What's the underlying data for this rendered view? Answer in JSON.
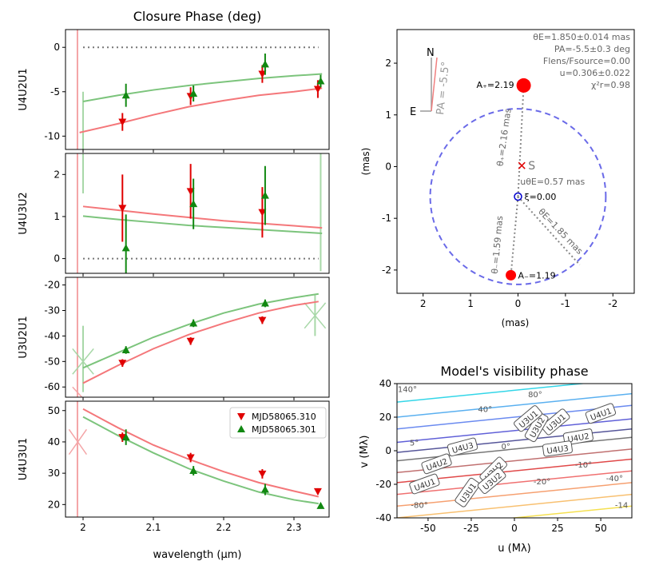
{
  "figure": {
    "left_title": "Closure Phase (deg)",
    "xlabel": "wavelength (μm)",
    "map_xlabel": "(mas)",
    "map_ylabel": "(mas)",
    "vis_title": "Model's visibility phase",
    "vis_xlabel": "u (Mλ)",
    "vis_ylabel": "v (Mλ)"
  },
  "legend": [
    {
      "label": "MJD58065.310",
      "color": "#e41a1c",
      "marker": "down-triangle"
    },
    {
      "label": "MJD58065.301",
      "color": "#1a8a1a",
      "marker": "up-triangle"
    }
  ],
  "colors": {
    "red_model": "#f4777a",
    "green_model": "#7cc47c",
    "red_data": "#e00000",
    "green_data": "#118811",
    "ring": "#6a6ae8"
  },
  "chart_data": [
    {
      "type": "scatter",
      "panel": "U4U2U1",
      "ylabel": "U4U2U1",
      "xlim": [
        1.975,
        2.35
      ],
      "ylim": [
        -11.5,
        2
      ],
      "xticks": [
        2.0,
        2.1,
        2.2,
        2.3
      ],
      "yticks": [
        0,
        -5,
        -10
      ],
      "zero_line": true,
      "series": [
        {
          "name": "MJD58065.310",
          "x": [
            2.056,
            2.153,
            2.255,
            2.334
          ],
          "y": [
            -8.4,
            -5.5,
            -3.0,
            -4.7
          ],
          "err": [
            1.0,
            1.0,
            1.0,
            1.0
          ]
        },
        {
          "name": "MJD58065.301",
          "x": [
            2.061,
            2.157,
            2.259,
            2.338
          ],
          "y": [
            -5.4,
            -5.2,
            -1.9,
            -3.8
          ],
          "err": [
            1.3,
            0.9,
            1.2,
            0.7
          ]
        }
      ],
      "models": [
        {
          "x": [
            1.995,
            2.05,
            2.1,
            2.15,
            2.2,
            2.25,
            2.3,
            2.34
          ],
          "y": [
            -9.6,
            -8.6,
            -7.6,
            -6.7,
            -6.0,
            -5.4,
            -5.0,
            -4.6
          ]
        },
        {
          "x": [
            2.0,
            2.05,
            2.1,
            2.15,
            2.2,
            2.25,
            2.3,
            2.34
          ],
          "y": [
            -6.1,
            -5.4,
            -4.8,
            -4.3,
            -3.9,
            -3.5,
            -3.2,
            -3.0
          ]
        }
      ]
    },
    {
      "type": "scatter",
      "panel": "U4U3U2",
      "ylabel": "U4U3U2",
      "xlim": [
        1.975,
        2.35
      ],
      "ylim": [
        -0.35,
        2.5
      ],
      "xticks": [
        2.0,
        2.1,
        2.2,
        2.3
      ],
      "yticks": [
        0,
        1,
        2
      ],
      "zero_line": true,
      "series": [
        {
          "name": "MJD58065.310",
          "x": [
            2.056,
            2.153,
            2.255
          ],
          "y": [
            1.2,
            1.6,
            1.1
          ],
          "err": [
            0.8,
            0.65,
            0.6
          ]
        },
        {
          "name": "MJD58065.301",
          "x": [
            2.061,
            2.157,
            2.259
          ],
          "y": [
            0.25,
            1.3,
            1.5
          ],
          "err": [
            0.8,
            0.6,
            0.7
          ]
        }
      ],
      "models": [
        {
          "x": [
            2.0,
            2.05,
            2.1,
            2.15,
            2.2,
            2.25,
            2.3,
            2.34
          ],
          "y": [
            1.24,
            1.15,
            1.06,
            0.98,
            0.9,
            0.84,
            0.78,
            0.73
          ]
        },
        {
          "x": [
            2.0,
            2.05,
            2.1,
            2.15,
            2.2,
            2.25,
            2.3,
            2.34
          ],
          "y": [
            1.01,
            0.93,
            0.86,
            0.79,
            0.74,
            0.69,
            0.64,
            0.6
          ]
        }
      ]
    },
    {
      "type": "scatter",
      "panel": "U3U2U1",
      "ylabel": "U3U2U1",
      "xlim": [
        1.975,
        2.35
      ],
      "ylim": [
        -64,
        -17
      ],
      "xticks": [
        2.0,
        2.1,
        2.2,
        2.3
      ],
      "yticks": [
        -20,
        -30,
        -40,
        -50,
        -60
      ],
      "zero_line": false,
      "series": [
        {
          "name": "MJD58065.310",
          "x": [
            2.056,
            2.153,
            2.255
          ],
          "y": [
            -50.6,
            -42.0,
            -33.8
          ],
          "err": [
            1.5,
            1.5,
            1.5
          ]
        },
        {
          "name": "MJD58065.301",
          "x": [
            2.061,
            2.157,
            2.259
          ],
          "y": [
            -45.5,
            -35.0,
            -27.2
          ],
          "err": [
            1.5,
            1.5,
            1.5
          ]
        }
      ],
      "models": [
        {
          "x": [
            2.0,
            2.05,
            2.1,
            2.15,
            2.2,
            2.25,
            2.3,
            2.335
          ],
          "y": [
            -58.5,
            -51.5,
            -45.0,
            -39.5,
            -35.0,
            -31.0,
            -28.0,
            -26.5
          ]
        },
        {
          "x": [
            2.0,
            2.05,
            2.1,
            2.15,
            2.2,
            2.25,
            2.3,
            2.335
          ],
          "y": [
            -52.5,
            -46.5,
            -40.5,
            -35.5,
            -31.0,
            -27.5,
            -25.0,
            -23.5
          ]
        }
      ]
    },
    {
      "type": "scatter",
      "panel": "U4U3U1",
      "ylabel": "U4U3U1",
      "xlim": [
        1.975,
        2.35
      ],
      "ylim": [
        16,
        53
      ],
      "xticks": [
        2.0,
        2.1,
        2.2,
        2.3
      ],
      "yticks": [
        20,
        30,
        40,
        50
      ],
      "zero_line": false,
      "series": [
        {
          "name": "MJD58065.310",
          "x": [
            2.056,
            2.153,
            2.255,
            2.334
          ],
          "y": [
            41.5,
            35.0,
            29.8,
            24.2
          ],
          "err": [
            1.5,
            1.5,
            1.5,
            1.0
          ]
        },
        {
          "name": "MJD58065.301",
          "x": [
            2.061,
            2.157,
            2.259,
            2.338
          ],
          "y": [
            41.5,
            30.8,
            24.8,
            19.6
          ],
          "err": [
            2.5,
            1.5,
            1.8,
            0.8
          ]
        }
      ],
      "models": [
        {
          "x": [
            2.0,
            2.05,
            2.1,
            2.15,
            2.2,
            2.25,
            2.3,
            2.335
          ],
          "y": [
            50.5,
            44.5,
            39.0,
            34.5,
            30.5,
            27.0,
            24.3,
            22.5
          ]
        },
        {
          "x": [
            2.0,
            2.05,
            2.1,
            2.15,
            2.2,
            2.25,
            2.3,
            2.335
          ],
          "y": [
            48.0,
            42.0,
            36.5,
            31.5,
            27.5,
            24.0,
            21.5,
            20.3
          ]
        }
      ]
    },
    {
      "type": "scatter",
      "panel": "lens-map",
      "xlim": [
        2.55,
        -2.45
      ],
      "ylim": [
        -2.45,
        2.65
      ],
      "xticks": [
        2,
        1,
        0,
        -1,
        -2
      ],
      "yticks": [
        2,
        1,
        0,
        -1,
        -2
      ],
      "einstein_radius": 1.85,
      "images": [
        {
          "label": "A₊=2.19",
          "x": -0.12,
          "y": 1.57
        },
        {
          "label": "A₋=1.19",
          "x": 0.15,
          "y": -2.1
        }
      ],
      "source": {
        "label": "S",
        "x": -0.08,
        "y": 0.02
      },
      "lens": {
        "label": "ξ=0.00",
        "x": 0.0,
        "y": -0.58
      },
      "theta_plus_label": "θ₊=2.16 mas",
      "theta_minus_label": "θ₋=1.59 mas",
      "theta_e_label": "θE=1.85 mas",
      "u_theta_label": "uθE=0.57 mas",
      "compass": {
        "north": "N",
        "east": "E",
        "pa_label": "PA = -5.5°"
      },
      "info": [
        "θE=1.850±0.014 mas",
        "PA=-5.5±0.3 deg",
        "Flens/Fsource=0.00",
        "u=0.306±0.022",
        "χ²r=0.98"
      ]
    },
    {
      "type": "contour",
      "panel": "visibility-phase",
      "xlim": [
        -68,
        68
      ],
      "ylim": [
        -40,
        40
      ],
      "xticks": [
        -50,
        -25,
        0,
        25,
        50
      ],
      "yticks": [
        40,
        20,
        0,
        -20,
        -40
      ],
      "contour_labels": [
        "140°",
        "80°",
        "40°",
        "5°",
        "0°",
        "-10°",
        "-20°",
        "-40°",
        "-80°",
        "-14"
      ],
      "baselines": [
        "U4U1",
        "U3U1",
        "U3U2",
        "U4U2",
        "U4U3",
        "U3U1",
        "U4U2",
        "U4U3",
        "U3U2",
        "U4U1",
        "U3U1",
        "U3U2"
      ]
    }
  ]
}
